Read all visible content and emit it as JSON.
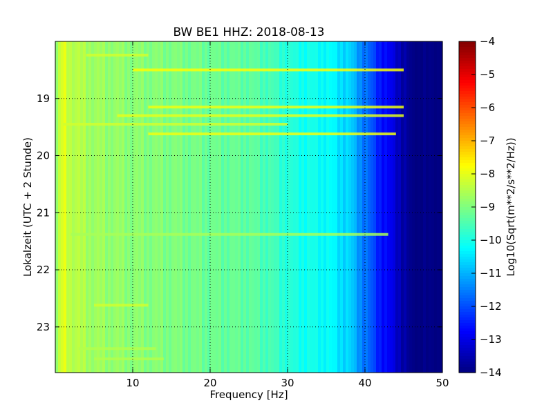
{
  "chart_data": {
    "type": "heatmap",
    "title": "BW BE1 HHZ: 2018-08-13",
    "xlabel": "Frequency [Hz]",
    "ylabel": "Lokalzeit (UTC + 2 Stunde)",
    "xlim": [
      0,
      50
    ],
    "ylim": [
      18.0,
      23.8
    ],
    "y_inverted": true,
    "grid": true,
    "x_ticks": [
      10,
      20,
      30,
      40,
      50
    ],
    "y_ticks": [
      19,
      20,
      21,
      22,
      23
    ],
    "colorscale": "jet",
    "colorbar": {
      "label": "Log10(Sqrt(m**2/s**2/Hz))",
      "min": -14,
      "max": -4,
      "ticks": [
        -4,
        -5,
        -6,
        -7,
        -8,
        -9,
        -10,
        -11,
        -12,
        -13,
        -14
      ]
    },
    "level_profile": {
      "frequency_hz": [
        0,
        1,
        2,
        5,
        10,
        15,
        20,
        25,
        28,
        31,
        35,
        38,
        40,
        42,
        44,
        46,
        50
      ],
      "log10_amplitude": [
        -9.0,
        -8.0,
        -8.4,
        -8.7,
        -8.9,
        -9.0,
        -9.2,
        -9.3,
        -9.6,
        -10.0,
        -10.2,
        -10.7,
        -11.6,
        -12.5,
        -13.2,
        -14.0,
        -14.0
      ]
    },
    "bright_bands": [
      {
        "time": 18.24,
        "freq_min": 4,
        "freq_max": 12,
        "log10_amplitude": -8.2
      },
      {
        "time": 18.5,
        "freq_min": 10,
        "freq_max": 45,
        "log10_amplitude": -7.8
      },
      {
        "time": 19.15,
        "freq_min": 12,
        "freq_max": 45,
        "log10_amplitude": -7.9
      },
      {
        "time": 19.3,
        "freq_min": 8,
        "freq_max": 45,
        "log10_amplitude": -8.0
      },
      {
        "time": 19.45,
        "freq_min": 1,
        "freq_max": 30,
        "log10_amplitude": -8.2
      },
      {
        "time": 19.62,
        "freq_min": 12,
        "freq_max": 44,
        "log10_amplitude": -7.9
      },
      {
        "time": 21.38,
        "freq_min": 2,
        "freq_max": 43,
        "log10_amplitude": -8.6
      },
      {
        "time": 22.62,
        "freq_min": 5,
        "freq_max": 12,
        "log10_amplitude": -8.2
      },
      {
        "time": 23.38,
        "freq_min": 3,
        "freq_max": 13,
        "log10_amplitude": -8.5
      },
      {
        "time": 23.56,
        "freq_min": 5,
        "freq_max": 14,
        "log10_amplitude": -8.5
      }
    ]
  }
}
